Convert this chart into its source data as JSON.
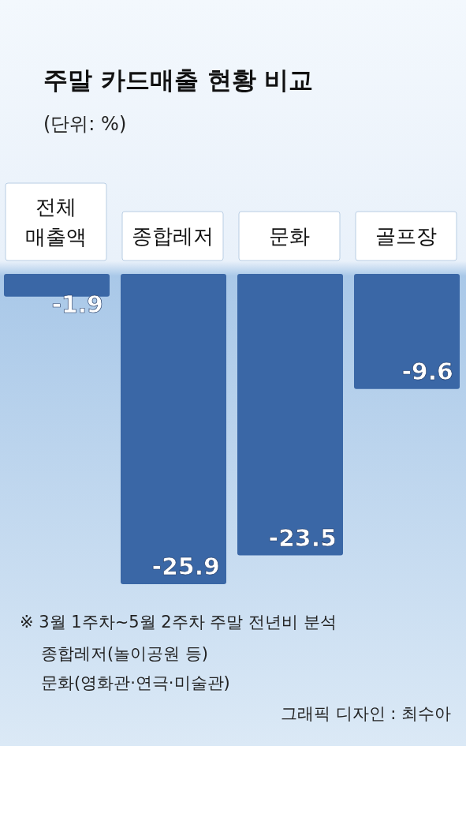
{
  "chart_data": {
    "type": "bar",
    "title": "주말 카드매출 현황 비교",
    "subtitle": "(단위: %)",
    "categories": [
      "전체 매출액",
      "종합레저",
      "문화",
      "골프장"
    ],
    "values": [
      -1.9,
      -25.9,
      -23.5,
      -9.6
    ],
    "color": "#3a67a6",
    "data_labels": true,
    "annotations": [
      "※ 3월 1주차~5월 2주차 주말 전년비 분석",
      "종합레저(놀이공원 등)",
      "문화(영화관·연극·미술관)",
      "그래픽 디자인 : 최수아"
    ]
  }
}
